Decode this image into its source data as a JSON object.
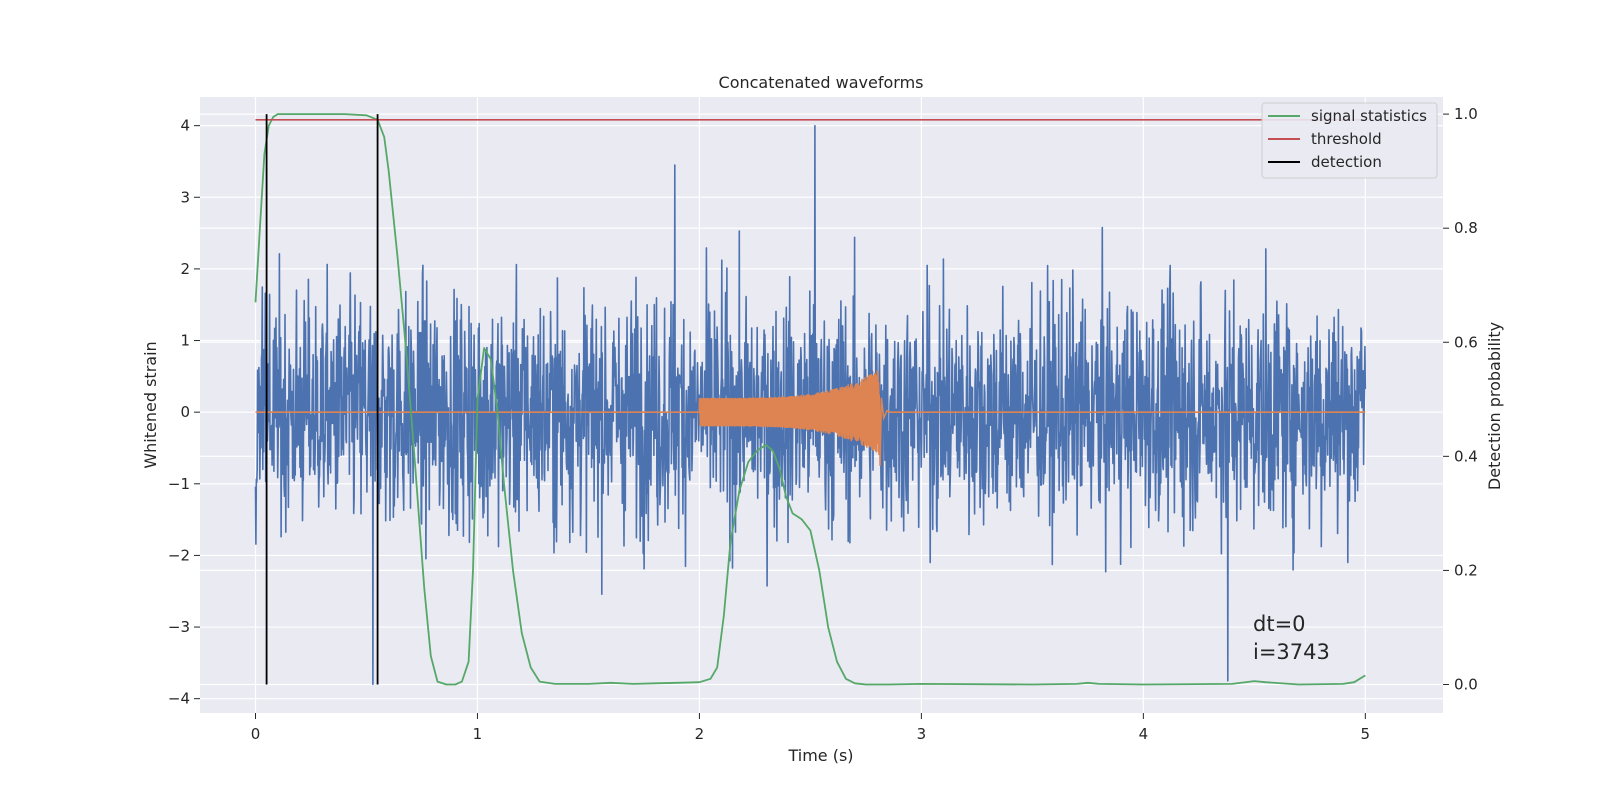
{
  "chart_data": {
    "type": "line",
    "title": "Concatenated waveforms",
    "xlabel": "Time (s)",
    "ylabel_left": "Whitened strain",
    "ylabel_right": "Detection probability",
    "xlim": [
      -0.25,
      5.35
    ],
    "ylim_left": [
      -4.2,
      4.4
    ],
    "ylim_right": [
      -0.05,
      1.03
    ],
    "x_ticks": [
      "0",
      "1",
      "2",
      "3",
      "4",
      "5"
    ],
    "y_ticks_left": [
      "4",
      "3",
      "2",
      "1",
      "0",
      "−1",
      "−2",
      "−3",
      "−4"
    ],
    "y_ticks_right": [
      "1.0",
      "0.8",
      "0.6",
      "0.4",
      "0.2",
      "0.0"
    ],
    "grid": true,
    "legend_position": "top-right",
    "legend": [
      "signal statistics",
      "threshold",
      "detection"
    ],
    "series": [
      {
        "name": "whitened strain",
        "axis": "left",
        "color": "#4c72b0",
        "x_range": [
          0,
          5
        ],
        "typical_envelope": [
          -1.5,
          1.5
        ],
        "notable_peaks": [
          {
            "x": 2.52,
            "y": 4.0
          },
          {
            "x": 1.89,
            "y": 3.45
          },
          {
            "x": 4.38,
            "y": -3.75
          },
          {
            "x": 0.53,
            "y": -3.8
          }
        ]
      },
      {
        "name": "injected waveform",
        "axis": "left",
        "color": "#dd8452",
        "x_range": [
          0,
          5
        ],
        "chirp_start": 2.0,
        "merger": 2.81,
        "start_amplitude": 0.2,
        "peak_amplitude": 0.6
      },
      {
        "name": "signal statistics",
        "axis": "right",
        "color": "#55a868",
        "x": [
          0.0,
          0.02,
          0.04,
          0.06,
          0.08,
          0.1,
          0.2,
          0.3,
          0.4,
          0.5,
          0.55,
          0.58,
          0.6,
          0.64,
          0.68,
          0.72,
          0.76,
          0.79,
          0.82,
          0.86,
          0.9,
          0.93,
          0.96,
          0.98,
          1.0,
          1.03,
          1.06,
          1.09,
          1.12,
          1.16,
          1.2,
          1.24,
          1.28,
          1.35,
          1.5,
          1.6,
          1.7,
          1.8,
          1.9,
          2.0,
          2.05,
          2.08,
          2.11,
          2.14,
          2.18,
          2.22,
          2.26,
          2.3,
          2.33,
          2.36,
          2.39,
          2.42,
          2.46,
          2.5,
          2.54,
          2.58,
          2.62,
          2.66,
          2.7,
          2.75,
          2.85,
          3.0,
          3.5,
          3.7,
          3.75,
          3.8,
          4.0,
          4.4,
          4.5,
          4.55,
          4.7,
          4.9,
          4.95,
          5.0
        ],
        "y": [
          0.67,
          0.8,
          0.93,
          0.98,
          0.995,
          1.0,
          1.0,
          1.0,
          1.0,
          0.998,
          0.99,
          0.96,
          0.9,
          0.75,
          0.58,
          0.38,
          0.17,
          0.05,
          0.005,
          0.0,
          0.0,
          0.005,
          0.04,
          0.2,
          0.5,
          0.59,
          0.57,
          0.48,
          0.35,
          0.2,
          0.09,
          0.03,
          0.005,
          0.001,
          0.001,
          0.003,
          0.001,
          0.002,
          0.003,
          0.004,
          0.01,
          0.03,
          0.12,
          0.25,
          0.34,
          0.39,
          0.41,
          0.42,
          0.41,
          0.38,
          0.33,
          0.3,
          0.29,
          0.27,
          0.2,
          0.1,
          0.04,
          0.01,
          0.002,
          0.0,
          0.0,
          0.001,
          0.0,
          0.001,
          0.003,
          0.001,
          0.0,
          0.001,
          0.006,
          0.004,
          0.0,
          0.001,
          0.004,
          0.016
        ]
      },
      {
        "name": "threshold",
        "axis": "right",
        "color": "#c44e52",
        "x": [
          0,
          5
        ],
        "y": [
          0.99,
          0.99
        ]
      },
      {
        "name": "detection",
        "axis": "right",
        "color": "#000000",
        "vlines": [
          0.05,
          0.55
        ],
        "ymin": 0.0,
        "ymax": 1.0
      }
    ],
    "annotation": {
      "line1": "dt=0",
      "line2": "i=3743",
      "x": 4.5,
      "y_left": -3.1
    }
  }
}
